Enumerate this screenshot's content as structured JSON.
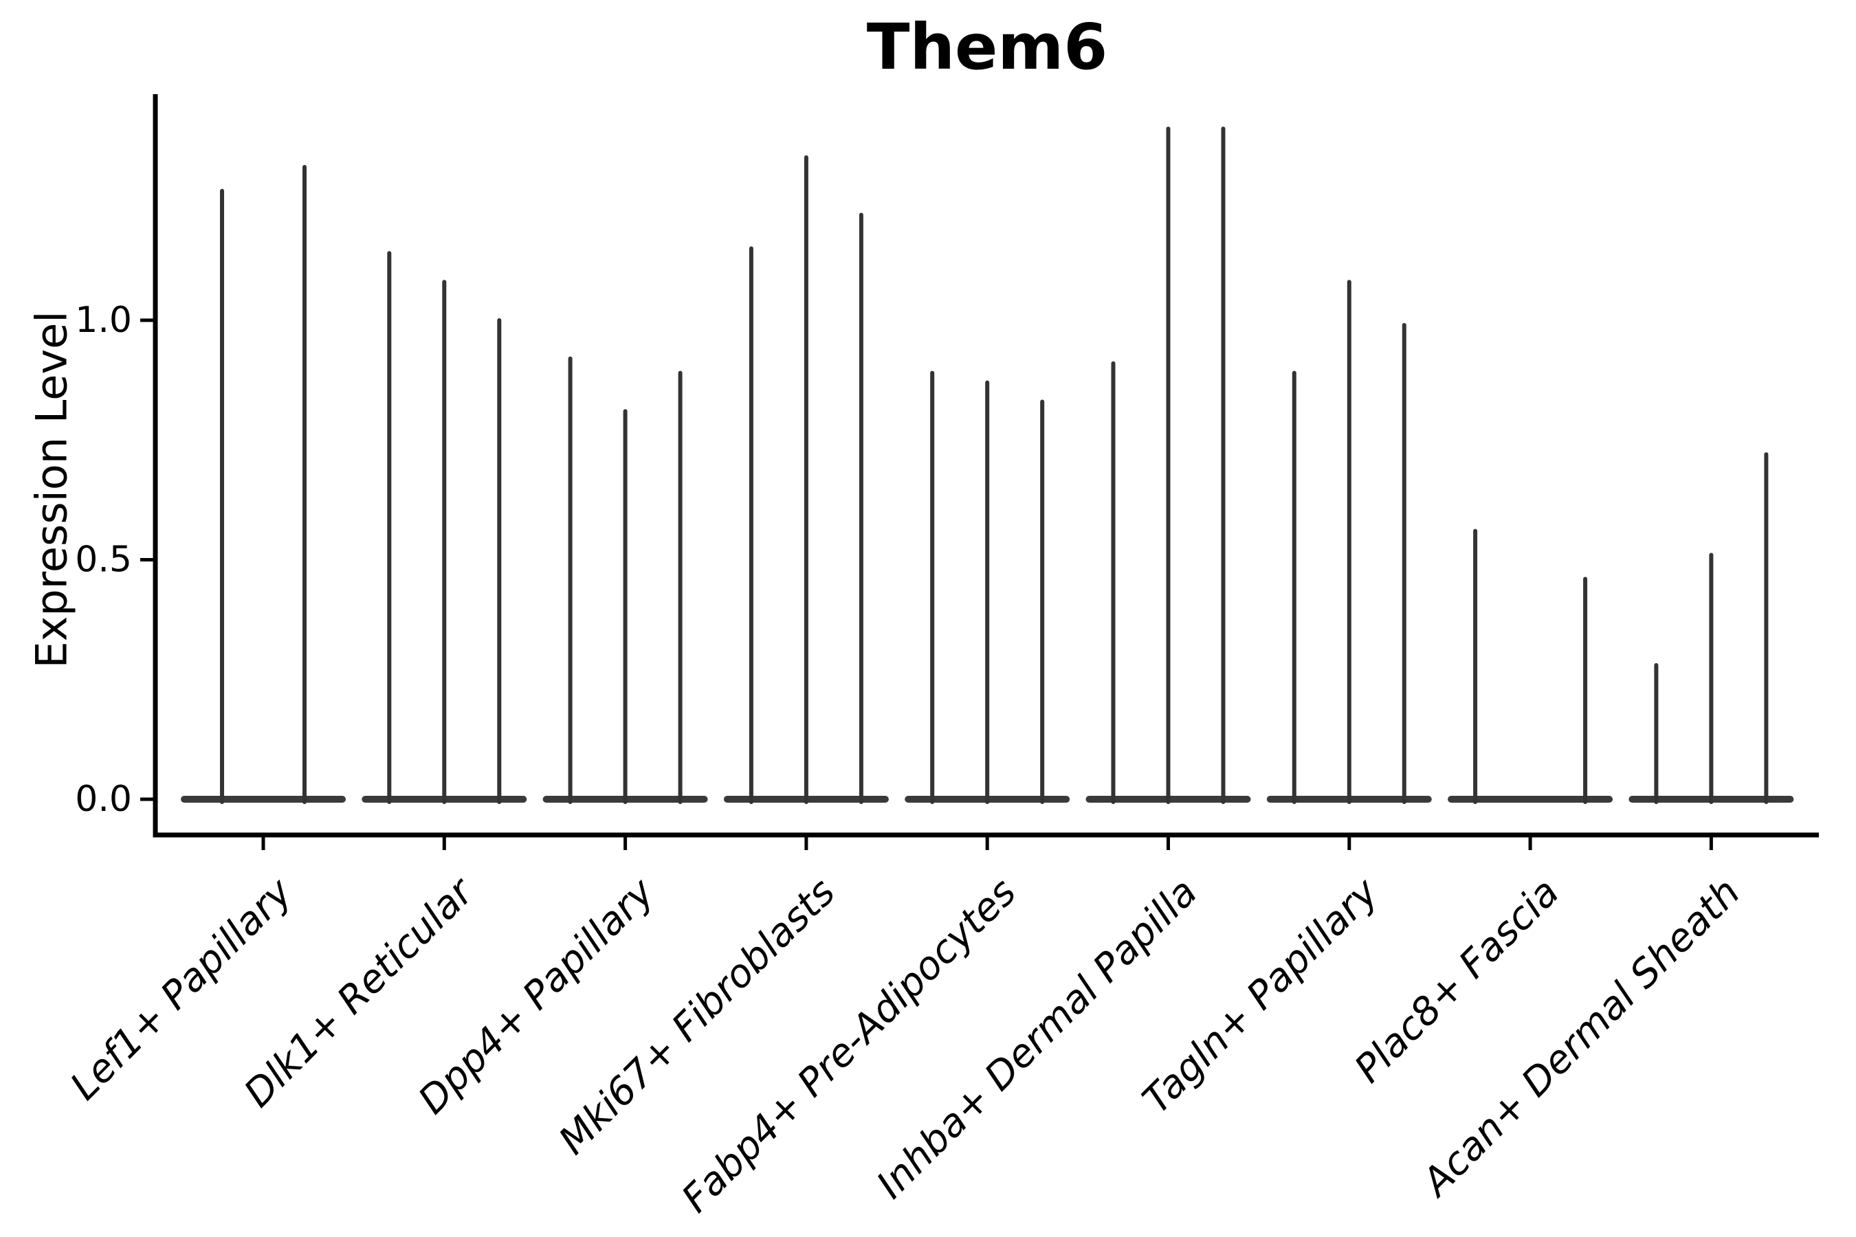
{
  "figure": {
    "title": "Them6"
  },
  "axes": {
    "y_label": "Expression Level",
    "y_tick_labels": [
      "0.0",
      "0.5",
      "1.0"
    ],
    "x_tick_labels": [
      "Lef1+ Papillary",
      "Dlk1+ Reticular",
      "Dpp4+ Papillary",
      "Mki67+ Fibroblasts",
      "Fabp4+ Pre-Adipocytes",
      "Inhba+ Dermal Papilla",
      "Tagln+ Papillary",
      "Plac8+ Fascia",
      "Acan+ Dermal Sheath"
    ]
  },
  "colors": {
    "ink": "#000000",
    "violin": "#333333",
    "violin_base": "#3a3a3a"
  },
  "chart_data": {
    "type": "violin",
    "title": "Them6",
    "xlabel": "",
    "ylabel": "Expression Level",
    "ylim": [
      -0.075,
      1.47
    ],
    "y_ticks": [
      0.0,
      0.5,
      1.0
    ],
    "grid": false,
    "legend": "none",
    "note": "Spike-shaped violins: expression mass concentrated at 0 (flat base lens at y=0) with a thin spike up to the max expressing cells. Each cell-type group contains 2-3 thin violins; 'max' is the top of each spike in Expression Level units. dx is the horizontal offset of each violin centre from the group tick, in px of the 2700x1800 canvas (group pitch 263.3px, first group centre x=383, base half-width 120px).",
    "categories": [
      "Lef1+ Papillary",
      "Dlk1+ Reticular",
      "Dpp4+ Papillary",
      "Mki67+ Fibroblasts",
      "Fabp4+ Pre-Adipocytes",
      "Inhba+ Dermal Papilla",
      "Tagln+ Papillary",
      "Plac8+ Fascia",
      "Acan+ Dermal Sheath"
    ],
    "groups": [
      {
        "category": "Lef1+ Papillary",
        "violins": [
          {
            "dx": -60,
            "max": 1.27
          },
          {
            "dx": 60,
            "max": 1.32
          }
        ]
      },
      {
        "category": "Dlk1+ Reticular",
        "violins": [
          {
            "dx": -80,
            "max": 1.14
          },
          {
            "dx": 0,
            "max": 1.08
          },
          {
            "dx": 80,
            "max": 1.0
          }
        ]
      },
      {
        "category": "Dpp4+ Papillary",
        "violins": [
          {
            "dx": -80,
            "max": 0.92
          },
          {
            "dx": 0,
            "max": 0.81
          },
          {
            "dx": 80,
            "max": 0.89
          }
        ]
      },
      {
        "category": "Mki67+ Fibroblasts",
        "violins": [
          {
            "dx": -80,
            "max": 1.15
          },
          {
            "dx": 0,
            "max": 1.34
          },
          {
            "dx": 80,
            "max": 1.22
          }
        ]
      },
      {
        "category": "Fabp4+ Pre-Adipocytes",
        "violins": [
          {
            "dx": -80,
            "max": 0.89
          },
          {
            "dx": 0,
            "max": 0.87
          },
          {
            "dx": 80,
            "max": 0.83
          }
        ]
      },
      {
        "category": "Inhba+ Dermal Papilla",
        "violins": [
          {
            "dx": -80,
            "max": 0.91
          },
          {
            "dx": 0,
            "max": 1.4
          },
          {
            "dx": 80,
            "max": 1.4
          }
        ]
      },
      {
        "category": "Tagln+ Papillary",
        "violins": [
          {
            "dx": -80,
            "max": 0.89
          },
          {
            "dx": 0,
            "max": 1.08
          },
          {
            "dx": 80,
            "max": 0.99
          }
        ]
      },
      {
        "category": "Plac8+ Fascia",
        "violins": [
          {
            "dx": -80,
            "max": 0.56
          },
          {
            "dx": 0,
            "max": 0.0
          },
          {
            "dx": 80,
            "max": 0.46
          }
        ]
      },
      {
        "category": "Acan+ Dermal Sheath",
        "violins": [
          {
            "dx": -80,
            "max": 0.28
          },
          {
            "dx": 0,
            "max": 0.51
          },
          {
            "dx": 80,
            "max": 0.72
          }
        ]
      }
    ]
  }
}
